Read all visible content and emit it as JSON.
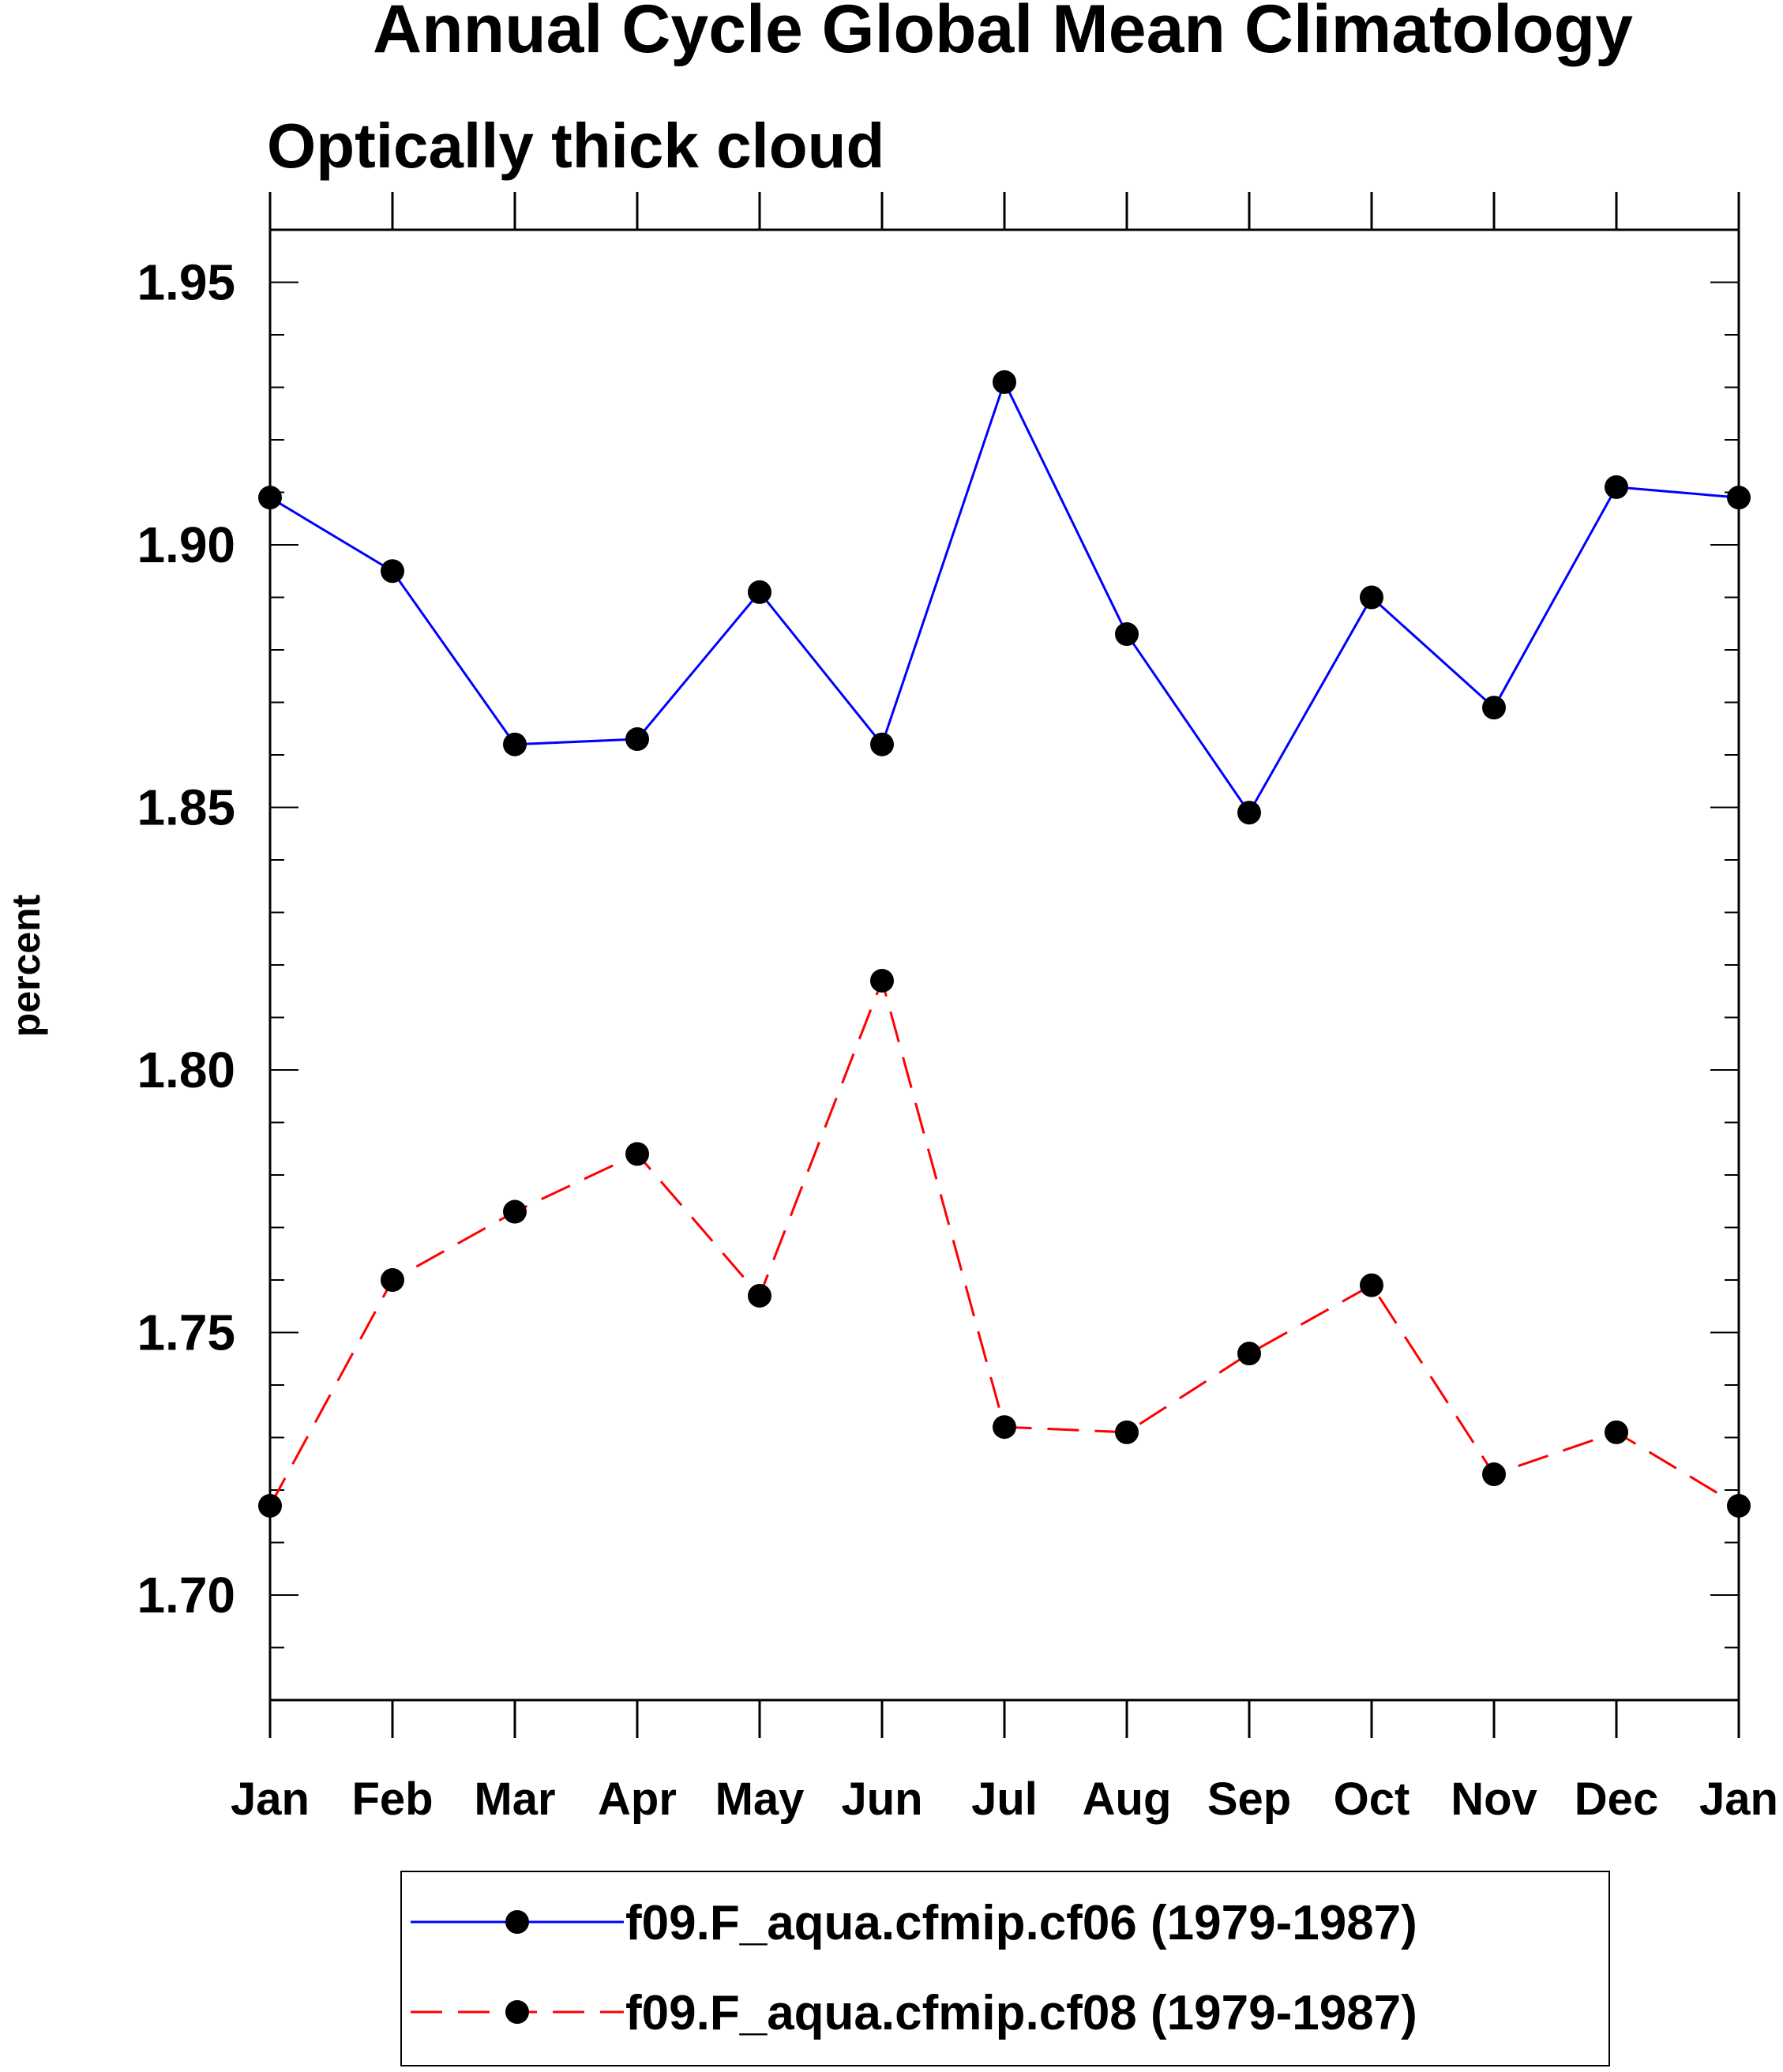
{
  "chart_data": {
    "type": "line",
    "title": "Annual Cycle Global Mean Climatology",
    "subtitle": "Optically thick cloud",
    "xlabel": "",
    "ylabel": "percent",
    "categories": [
      "Jan",
      "Feb",
      "Mar",
      "Apr",
      "May",
      "Jun",
      "Jul",
      "Aug",
      "Sep",
      "Oct",
      "Nov",
      "Dec",
      "Jan"
    ],
    "ylim": [
      1.68,
      1.96
    ],
    "yticks": [
      "1.70",
      "1.75",
      "1.80",
      "1.85",
      "1.90",
      "1.95"
    ],
    "grid": false,
    "legend_position": "bottom",
    "series": [
      {
        "name": "f09.F_aqua.cfmip.cf06 (1979-1987)",
        "color": "#0000ff",
        "dash": "solid",
        "values": [
          1.909,
          1.895,
          1.862,
          1.863,
          1.891,
          1.862,
          1.931,
          1.883,
          1.849,
          1.89,
          1.869,
          1.911,
          1.909
        ]
      },
      {
        "name": "f09.F_aqua.cfmip.cf08 (1979-1987)",
        "color": "#ff0000",
        "dash": "dashed",
        "values": [
          1.717,
          1.76,
          1.773,
          1.784,
          1.757,
          1.817,
          1.732,
          1.731,
          1.746,
          1.759,
          1.723,
          1.731,
          1.717
        ]
      }
    ]
  }
}
